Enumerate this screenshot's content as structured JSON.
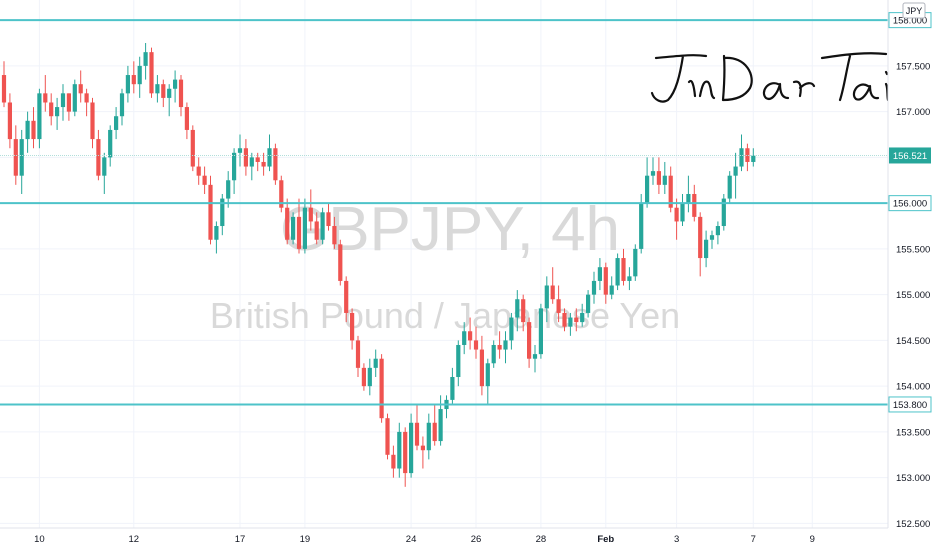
{
  "chart_data": {
    "type": "candlestick",
    "title": "GBPJPY, 4h",
    "subtitle": "British Pound / Japanese Yen",
    "currency_label": "JPY",
    "watermark_signature": "JinDaoTai",
    "ylim": [
      152.45,
      158.22
    ],
    "y_ticks": [
      158.0,
      157.5,
      157.0,
      156.5,
      156.0,
      155.5,
      155.0,
      154.5,
      154.0,
      153.5,
      153.0,
      152.5
    ],
    "x_ticks": [
      {
        "label": "10",
        "bar": 6
      },
      {
        "label": "12",
        "bar": 22
      },
      {
        "label": "17",
        "bar": 40
      },
      {
        "label": "19",
        "bar": 51
      },
      {
        "label": "24",
        "bar": 69
      },
      {
        "label": "26",
        "bar": 80
      },
      {
        "label": "28",
        "bar": 91
      },
      {
        "label": "Feb",
        "bar": 102,
        "bold": true
      },
      {
        "label": "3",
        "bar": 114
      },
      {
        "label": "7",
        "bar": 127
      },
      {
        "label": "9",
        "bar": 137
      }
    ],
    "bars_shown": 142,
    "last_price": 156.521,
    "horizontal_levels": [
      158.0,
      156.0,
      153.8
    ],
    "level_labels": [
      "158.000",
      "156.000",
      "153.800"
    ],
    "last_price_label": "156.521",
    "colors": {
      "up": "#26a69a",
      "down": "#ef5350",
      "level_line": "#4dc3c9",
      "grid": "#f0f3fa",
      "last_price_line": "#26a69a",
      "watermark": "#d6d6d6"
    },
    "series": [
      {
        "ohlc": [
          [
            157.4,
            157.55,
            157.05,
            157.1
          ],
          [
            157.1,
            157.2,
            156.6,
            156.7
          ],
          [
            156.7,
            156.85,
            156.2,
            156.3
          ],
          [
            156.3,
            156.8,
            156.1,
            156.7
          ],
          [
            156.7,
            157.0,
            156.55,
            156.9
          ],
          [
            156.9,
            157.05,
            156.6,
            156.7
          ],
          [
            156.7,
            157.25,
            156.6,
            157.2
          ],
          [
            157.2,
            157.4,
            157.0,
            157.1
          ],
          [
            157.1,
            157.2,
            156.85,
            156.95
          ],
          [
            156.95,
            157.15,
            156.8,
            157.05
          ],
          [
            157.05,
            157.3,
            156.9,
            157.2
          ],
          [
            157.2,
            157.2,
            156.9,
            157.0
          ],
          [
            157.0,
            157.35,
            156.95,
            157.3
          ],
          [
            157.3,
            157.45,
            157.1,
            157.2
          ],
          [
            157.2,
            157.25,
            156.95,
            157.1
          ],
          [
            157.1,
            157.15,
            156.6,
            156.7
          ],
          [
            156.7,
            156.8,
            156.25,
            156.3
          ],
          [
            156.3,
            156.55,
            156.1,
            156.5
          ],
          [
            156.5,
            156.85,
            156.4,
            156.8
          ],
          [
            156.8,
            157.05,
            156.7,
            156.95
          ],
          [
            156.95,
            157.25,
            156.85,
            157.2
          ],
          [
            157.2,
            157.5,
            157.1,
            157.4
          ],
          [
            157.4,
            157.55,
            157.2,
            157.3
          ],
          [
            157.3,
            157.6,
            157.15,
            157.5
          ],
          [
            157.5,
            157.75,
            157.35,
            157.65
          ],
          [
            157.65,
            157.7,
            157.15,
            157.2
          ],
          [
            157.2,
            157.4,
            157.1,
            157.3
          ],
          [
            157.3,
            157.35,
            157.05,
            157.15
          ],
          [
            157.15,
            157.3,
            156.95,
            157.25
          ],
          [
            157.25,
            157.45,
            157.1,
            157.35
          ],
          [
            157.35,
            157.4,
            156.95,
            157.05
          ],
          [
            157.05,
            157.1,
            156.7,
            156.8
          ],
          [
            156.8,
            156.85,
            156.35,
            156.4
          ],
          [
            156.4,
            156.5,
            156.2,
            156.3
          ],
          [
            156.3,
            156.4,
            156.1,
            156.2
          ],
          [
            156.2,
            156.3,
            155.55,
            155.6
          ],
          [
            155.6,
            155.8,
            155.45,
            155.75
          ],
          [
            155.75,
            156.1,
            155.65,
            156.05
          ],
          [
            156.05,
            156.35,
            155.95,
            156.25
          ],
          [
            156.25,
            156.6,
            156.1,
            156.55
          ],
          [
            156.55,
            156.75,
            156.4,
            156.6
          ],
          [
            156.6,
            156.7,
            156.3,
            156.4
          ],
          [
            156.4,
            156.55,
            156.25,
            156.5
          ],
          [
            156.5,
            156.55,
            156.35,
            156.45
          ],
          [
            156.45,
            156.55,
            156.3,
            156.4
          ],
          [
            156.4,
            156.75,
            156.35,
            156.6
          ],
          [
            156.6,
            156.65,
            156.2,
            156.25
          ],
          [
            156.25,
            156.3,
            155.9,
            155.95
          ],
          [
            155.95,
            156.05,
            155.55,
            155.6
          ],
          [
            155.6,
            155.9,
            155.55,
            155.85
          ],
          [
            155.85,
            156.05,
            155.45,
            155.5
          ],
          [
            155.5,
            156.05,
            155.45,
            155.95
          ],
          [
            155.95,
            156.15,
            155.7,
            155.8
          ],
          [
            155.8,
            155.9,
            155.55,
            155.6
          ],
          [
            155.6,
            155.95,
            155.55,
            155.9
          ],
          [
            155.9,
            156.0,
            155.7,
            155.75
          ],
          [
            155.75,
            155.85,
            155.5,
            155.55
          ],
          [
            155.55,
            155.6,
            155.1,
            155.15
          ],
          [
            155.15,
            155.2,
            154.7,
            154.8
          ],
          [
            154.8,
            154.85,
            154.4,
            154.5
          ],
          [
            154.5,
            154.55,
            154.1,
            154.2
          ],
          [
            154.2,
            154.25,
            153.95,
            154.0
          ],
          [
            154.0,
            154.3,
            153.9,
            154.2
          ],
          [
            154.2,
            154.4,
            154.1,
            154.3
          ],
          [
            154.3,
            154.35,
            153.6,
            153.65
          ],
          [
            153.65,
            153.7,
            153.2,
            153.25
          ],
          [
            153.25,
            153.35,
            153.0,
            153.1
          ],
          [
            153.1,
            153.6,
            153.0,
            153.5
          ],
          [
            153.5,
            153.55,
            152.9,
            153.05
          ],
          [
            153.05,
            153.7,
            153.0,
            153.6
          ],
          [
            153.6,
            153.8,
            153.3,
            153.35
          ],
          [
            153.35,
            153.45,
            153.1,
            153.3
          ],
          [
            153.3,
            153.7,
            153.2,
            153.6
          ],
          [
            153.6,
            153.8,
            153.35,
            153.4
          ],
          [
            153.4,
            153.9,
            153.35,
            153.75
          ],
          [
            153.75,
            153.9,
            153.65,
            153.85
          ],
          [
            153.85,
            154.2,
            153.8,
            154.1
          ],
          [
            154.1,
            154.5,
            154.0,
            154.45
          ],
          [
            154.45,
            154.7,
            154.35,
            154.6
          ],
          [
            154.6,
            154.75,
            154.4,
            154.5
          ],
          [
            154.5,
            154.65,
            154.3,
            154.4
          ],
          [
            154.4,
            154.55,
            153.9,
            154.0
          ],
          [
            154.0,
            154.3,
            153.8,
            154.25
          ],
          [
            154.25,
            154.5,
            154.2,
            154.45
          ],
          [
            154.45,
            154.6,
            154.3,
            154.4
          ],
          [
            154.4,
            154.6,
            154.25,
            154.5
          ],
          [
            154.5,
            154.8,
            154.4,
            154.75
          ],
          [
            154.75,
            155.05,
            154.6,
            154.95
          ],
          [
            154.95,
            155.0,
            154.6,
            154.7
          ],
          [
            154.7,
            154.75,
            154.2,
            154.3
          ],
          [
            154.3,
            154.45,
            154.15,
            154.35
          ],
          [
            154.35,
            154.9,
            154.3,
            154.85
          ],
          [
            154.85,
            155.2,
            154.7,
            155.1
          ],
          [
            155.1,
            155.3,
            154.9,
            154.95
          ],
          [
            154.95,
            155.1,
            154.7,
            154.8
          ],
          [
            154.8,
            154.85,
            154.6,
            154.65
          ],
          [
            154.65,
            154.8,
            154.55,
            154.75
          ],
          [
            154.75,
            154.85,
            154.6,
            154.7
          ],
          [
            154.7,
            154.9,
            154.65,
            154.8
          ],
          [
            154.8,
            155.05,
            154.75,
            155.0
          ],
          [
            155.0,
            155.25,
            154.9,
            155.15
          ],
          [
            155.15,
            155.4,
            155.05,
            155.3
          ],
          [
            155.3,
            155.35,
            154.9,
            155.0
          ],
          [
            155.0,
            155.2,
            154.95,
            155.1
          ],
          [
            155.1,
            155.45,
            155.05,
            155.4
          ],
          [
            155.4,
            155.5,
            155.1,
            155.15
          ],
          [
            155.15,
            155.3,
            155.05,
            155.2
          ],
          [
            155.2,
            155.55,
            155.15,
            155.5
          ],
          [
            155.5,
            156.1,
            155.45,
            156.0
          ],
          [
            156.0,
            156.5,
            155.95,
            156.3
          ],
          [
            156.3,
            156.5,
            156.2,
            156.35
          ],
          [
            156.35,
            156.5,
            156.1,
            156.2
          ],
          [
            156.2,
            156.45,
            156.1,
            156.3
          ],
          [
            156.3,
            156.4,
            155.9,
            155.95
          ],
          [
            155.95,
            156.05,
            155.6,
            155.8
          ],
          [
            155.8,
            156.1,
            155.75,
            156.0
          ],
          [
            156.0,
            156.3,
            155.9,
            156.1
          ],
          [
            156.1,
            156.2,
            155.8,
            155.85
          ],
          [
            155.85,
            155.9,
            155.2,
            155.4
          ],
          [
            155.4,
            155.7,
            155.3,
            155.6
          ],
          [
            155.6,
            155.7,
            155.5,
            155.65
          ],
          [
            155.65,
            155.8,
            155.55,
            155.75
          ],
          [
            155.75,
            156.1,
            155.7,
            156.05
          ],
          [
            156.05,
            156.35,
            156.0,
            156.3
          ],
          [
            156.3,
            156.55,
            156.05,
            156.4
          ],
          [
            156.4,
            156.75,
            156.35,
            156.6
          ],
          [
            156.6,
            156.65,
            156.35,
            156.45
          ],
          [
            156.45,
            156.6,
            156.4,
            156.52
          ]
        ]
      }
    ]
  }
}
